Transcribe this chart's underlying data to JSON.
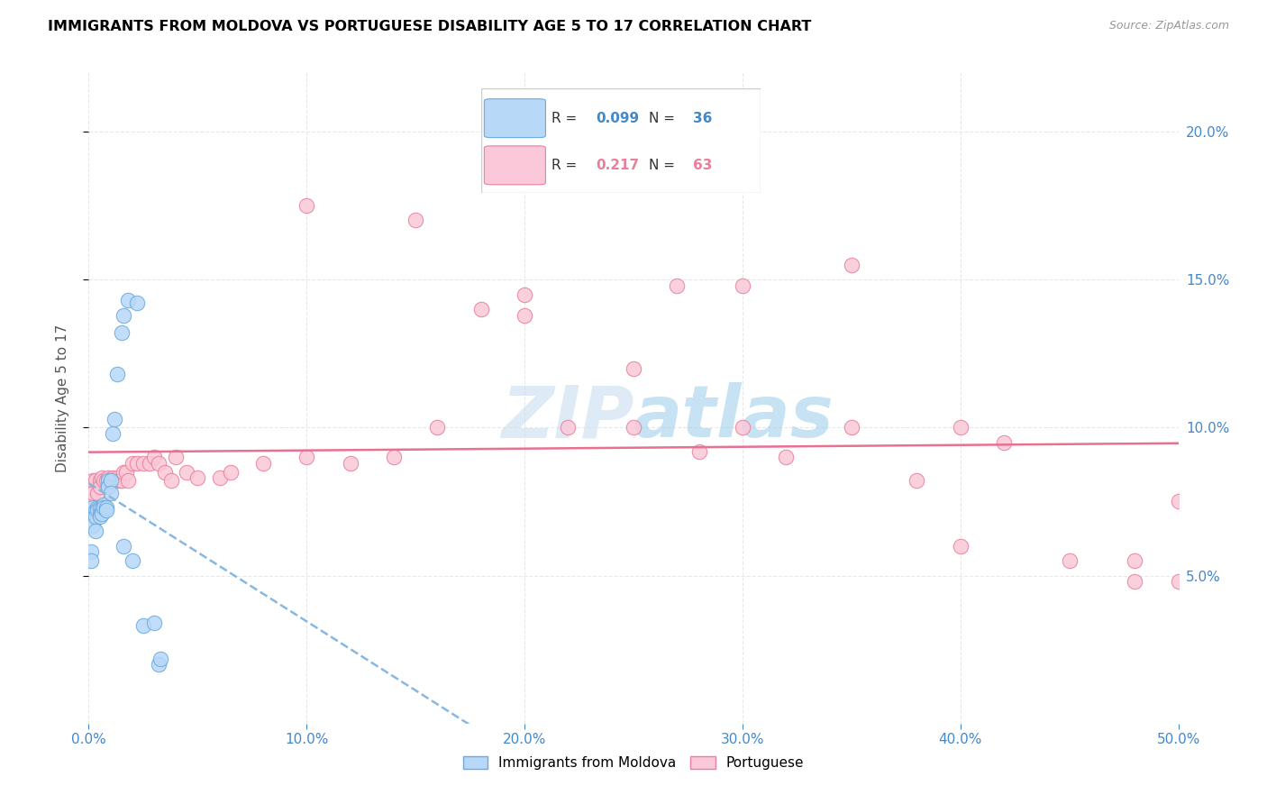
{
  "title": "IMMIGRANTS FROM MOLDOVA VS PORTUGUESE DISABILITY AGE 5 TO 17 CORRELATION CHART",
  "source": "Source: ZipAtlas.com",
  "ylabel": "Disability Age 5 to 17",
  "xlim": [
    0.0,
    0.5
  ],
  "ylim": [
    0.0,
    0.22
  ],
  "xticks": [
    0.0,
    0.1,
    0.2,
    0.3,
    0.4,
    0.5
  ],
  "yticks": [
    0.05,
    0.1,
    0.15,
    0.2
  ],
  "color_blue_fill": "#b8d8f8",
  "color_blue_edge": "#6aaade",
  "color_pink_fill": "#fac8d8",
  "color_pink_edge": "#e8809a",
  "color_blue_line": "#88b8e0",
  "color_pink_line": "#e87090",
  "tick_color": "#4488cc",
  "grid_color": "#e8e8e8",
  "watermark_color": "#c8dff0",
  "moldova_x": [
    0.001,
    0.001,
    0.002,
    0.002,
    0.002,
    0.003,
    0.003,
    0.003,
    0.004,
    0.004,
    0.005,
    0.005,
    0.005,
    0.006,
    0.006,
    0.007,
    0.007,
    0.008,
    0.008,
    0.009,
    0.009,
    0.01,
    0.01,
    0.011,
    0.012,
    0.013,
    0.015,
    0.016,
    0.018,
    0.022,
    0.025,
    0.03,
    0.032,
    0.033,
    0.016,
    0.02
  ],
  "moldova_y": [
    0.058,
    0.055,
    0.073,
    0.07,
    0.067,
    0.072,
    0.07,
    0.065,
    0.073,
    0.072,
    0.073,
    0.071,
    0.07,
    0.073,
    0.071,
    0.074,
    0.073,
    0.073,
    0.072,
    0.082,
    0.08,
    0.082,
    0.078,
    0.098,
    0.103,
    0.118,
    0.132,
    0.138,
    0.143,
    0.142,
    0.033,
    0.034,
    0.02,
    0.022,
    0.06,
    0.055
  ],
  "portuguese_x": [
    0.001,
    0.002,
    0.002,
    0.003,
    0.004,
    0.005,
    0.005,
    0.006,
    0.007,
    0.008,
    0.009,
    0.009,
    0.01,
    0.011,
    0.012,
    0.013,
    0.014,
    0.015,
    0.016,
    0.017,
    0.018,
    0.02,
    0.022,
    0.025,
    0.028,
    0.03,
    0.032,
    0.035,
    0.038,
    0.04,
    0.045,
    0.05,
    0.06,
    0.065,
    0.08,
    0.1,
    0.12,
    0.14,
    0.16,
    0.18,
    0.2,
    0.22,
    0.25,
    0.28,
    0.3,
    0.32,
    0.35,
    0.38,
    0.4,
    0.42,
    0.45,
    0.48,
    0.5,
    0.27,
    0.3,
    0.35,
    0.1,
    0.15,
    0.2,
    0.25,
    0.4,
    0.48,
    0.5
  ],
  "portuguese_y": [
    0.075,
    0.082,
    0.078,
    0.082,
    0.078,
    0.082,
    0.08,
    0.083,
    0.082,
    0.082,
    0.083,
    0.08,
    0.082,
    0.083,
    0.082,
    0.083,
    0.082,
    0.082,
    0.085,
    0.085,
    0.082,
    0.088,
    0.088,
    0.088,
    0.088,
    0.09,
    0.088,
    0.085,
    0.082,
    0.09,
    0.085,
    0.083,
    0.083,
    0.085,
    0.088,
    0.09,
    0.088,
    0.09,
    0.1,
    0.14,
    0.138,
    0.1,
    0.12,
    0.092,
    0.1,
    0.09,
    0.1,
    0.082,
    0.06,
    0.095,
    0.055,
    0.055,
    0.075,
    0.148,
    0.148,
    0.155,
    0.175,
    0.17,
    0.145,
    0.1,
    0.1,
    0.048,
    0.048
  ],
  "r1": "0.099",
  "n1": "36",
  "r2": "0.217",
  "n2": "63"
}
